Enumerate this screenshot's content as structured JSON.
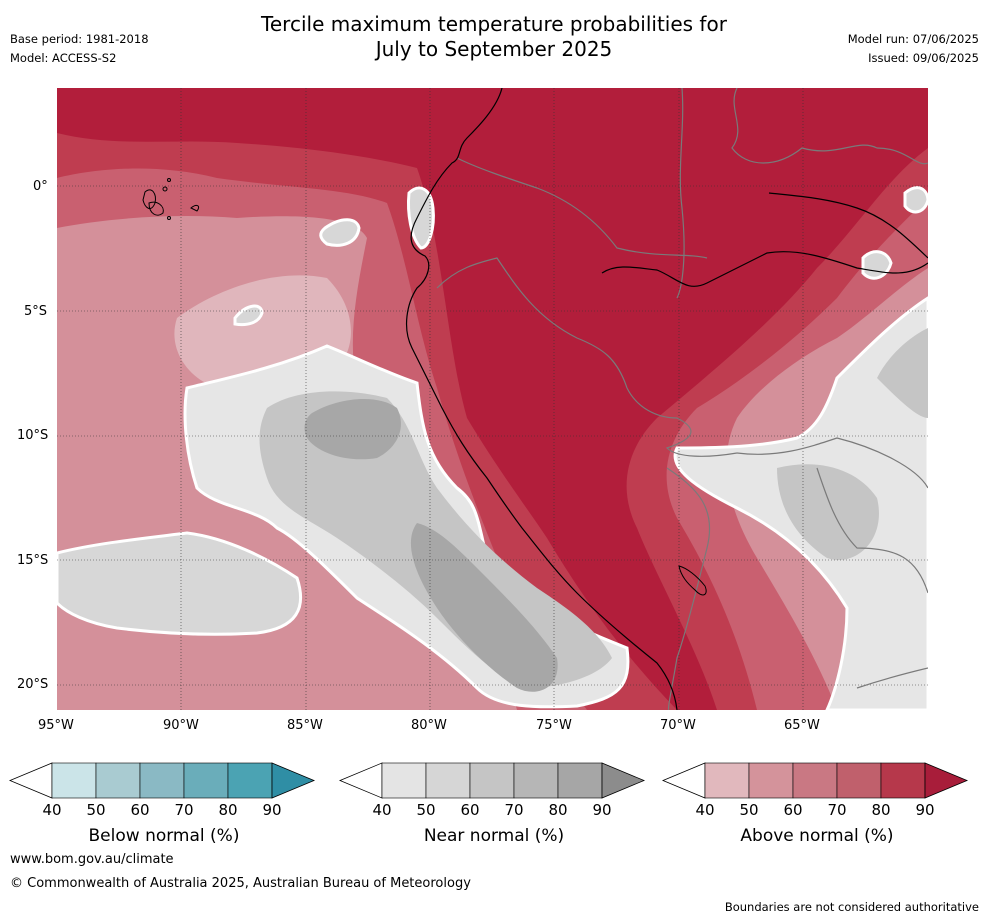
{
  "header": {
    "title_line1": "Tercile maximum temperature probabilities for",
    "title_line2": "July to September 2025",
    "base_period": "Base period: 1981-2018",
    "model": "Model: ACCESS-S2",
    "model_run": "Model run: 07/06/2025",
    "issued": "Issued: 09/06/2025"
  },
  "map": {
    "lat_labels": [
      "0°",
      "5°S",
      "10°S",
      "15°S",
      "20°S"
    ],
    "lon_labels": [
      "95°W",
      "90°W",
      "85°W",
      "80°W",
      "75°W",
      "70°W",
      "65°W"
    ]
  },
  "colorbars": [
    {
      "id": "below",
      "title": "Below normal (%)",
      "ticks": [
        "40",
        "50",
        "60",
        "70",
        "80",
        "90"
      ],
      "colors": [
        "#cbe4e8",
        "#a9cbd1",
        "#8ab9c4",
        "#6aadba",
        "#4ba3b3"
      ],
      "extend_color": "#2f8ea5"
    },
    {
      "id": "near",
      "title": "Near normal (%)",
      "ticks": [
        "40",
        "50",
        "60",
        "70",
        "80",
        "90"
      ],
      "colors": [
        "#e4e4e4",
        "#d6d6d6",
        "#c5c5c5",
        "#b6b6b6",
        "#a6a6a6"
      ],
      "extend_color": "#8c8c8c"
    },
    {
      "id": "above",
      "title": "Above normal (%)",
      "ticks": [
        "40",
        "50",
        "60",
        "70",
        "80",
        "90"
      ],
      "colors": [
        "#e1b8bd",
        "#d4939b",
        "#c97883",
        "#c0606c",
        "#b6384b"
      ],
      "extend_color": "#a81d3a"
    }
  ],
  "footer": {
    "url": "www.bom.gov.au/climate",
    "copyright": "© Commonwealth of Australia 2025, Australian Bureau of Meteorology",
    "disclaimer": "Boundaries are not considered authoritative"
  },
  "colors": {
    "above_90": "#b21e3b",
    "above_80": "#bf3d50",
    "above_70": "#c96070",
    "above_60": "#d4909a",
    "above_50": "#e0b6bc",
    "near_40": "#e6e6e6",
    "near_50": "#d7d7d7",
    "near_60": "#c5c5c5",
    "near_70": "#b5b5b5",
    "near_80": "#a7a7a7"
  }
}
